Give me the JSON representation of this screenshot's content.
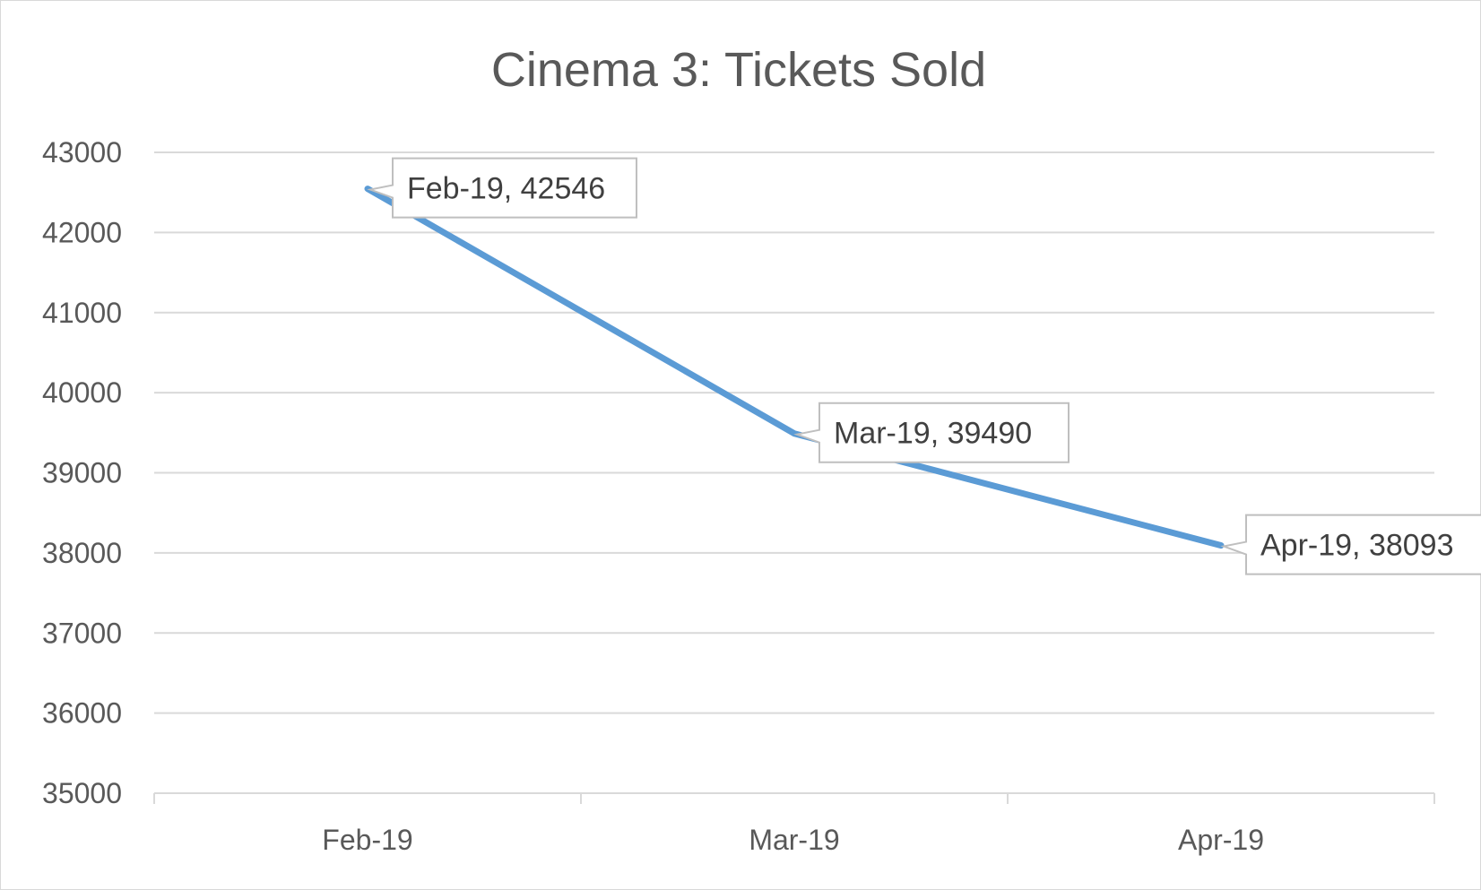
{
  "chart_data": {
    "type": "line",
    "title": "Cinema 3: Tickets Sold",
    "xlabel": "",
    "ylabel": "",
    "categories": [
      "Feb-19",
      "Mar-19",
      "Apr-19"
    ],
    "series": [
      {
        "values": [
          42546,
          39490,
          38093
        ],
        "color": "#5b9bd5"
      }
    ],
    "data_labels": [
      "Feb-19, 42546",
      "Mar-19, 39490",
      "Apr-19, 38093"
    ],
    "ylim": [
      35000,
      43000
    ],
    "yticks": [
      "35000",
      "36000",
      "37000",
      "38000",
      "39000",
      "40000",
      "41000",
      "42000",
      "43000"
    ],
    "grid": true,
    "legend": "none"
  }
}
